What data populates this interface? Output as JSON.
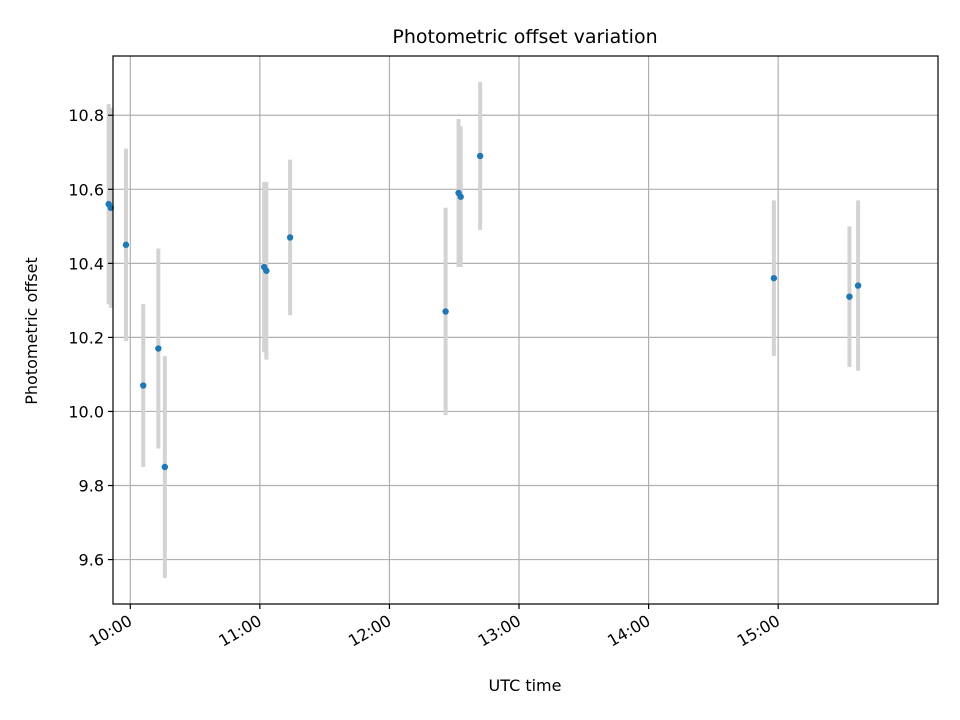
{
  "chart_data": {
    "type": "scatter",
    "title": "Photometric offset variation",
    "xlabel": "UTC time",
    "ylabel": "Photometric offset",
    "x_tick_labels": [
      "10:00",
      "11:00",
      "12:00",
      "13:00",
      "14:00",
      "15:00"
    ],
    "y_tick_labels": [
      "9.6",
      "9.8",
      "10.0",
      "10.2",
      "10.4",
      "10.6",
      "10.8"
    ],
    "x_ticks": [
      "10:00",
      "11:00",
      "12:00",
      "13:00",
      "14:00",
      "15:00"
    ],
    "y_ticks": [
      9.6,
      9.8,
      10.0,
      10.2,
      10.4,
      10.6,
      10.8
    ],
    "xlim": [
      "09:52",
      "16:14"
    ],
    "ylim": [
      9.48,
      10.96
    ],
    "grid": true,
    "series": [
      {
        "points": [
          {
            "x": "09:50",
            "y": 10.56,
            "err": 0.27
          },
          {
            "x": "09:51",
            "y": 10.55,
            "err": 0.27
          },
          {
            "x": "09:58",
            "y": 10.45,
            "err": 0.26
          },
          {
            "x": "10:06",
            "y": 10.07,
            "err": 0.22
          },
          {
            "x": "10:13",
            "y": 10.17,
            "err": 0.27
          },
          {
            "x": "10:16",
            "y": 9.85,
            "err": 0.3
          },
          {
            "x": "11:02",
            "y": 10.39,
            "err": 0.23
          },
          {
            "x": "11:03",
            "y": 10.38,
            "err": 0.24
          },
          {
            "x": "11:14",
            "y": 10.47,
            "err": 0.21
          },
          {
            "x": "12:26",
            "y": 10.27,
            "err": 0.28
          },
          {
            "x": "12:32",
            "y": 10.59,
            "err": 0.2
          },
          {
            "x": "12:33",
            "y": 10.58,
            "err": 0.19
          },
          {
            "x": "12:42",
            "y": 10.69,
            "err": 0.2
          },
          {
            "x": "14:58",
            "y": 10.36,
            "err": 0.21
          },
          {
            "x": "15:33",
            "y": 10.31,
            "err": 0.19
          },
          {
            "x": "15:37",
            "y": 10.34,
            "err": 0.23
          }
        ]
      }
    ],
    "colors": {
      "marker": "#1f77b4",
      "errorbar": "#d3d3d3",
      "grid": "#b0b0b0",
      "axes": "#000000"
    }
  }
}
